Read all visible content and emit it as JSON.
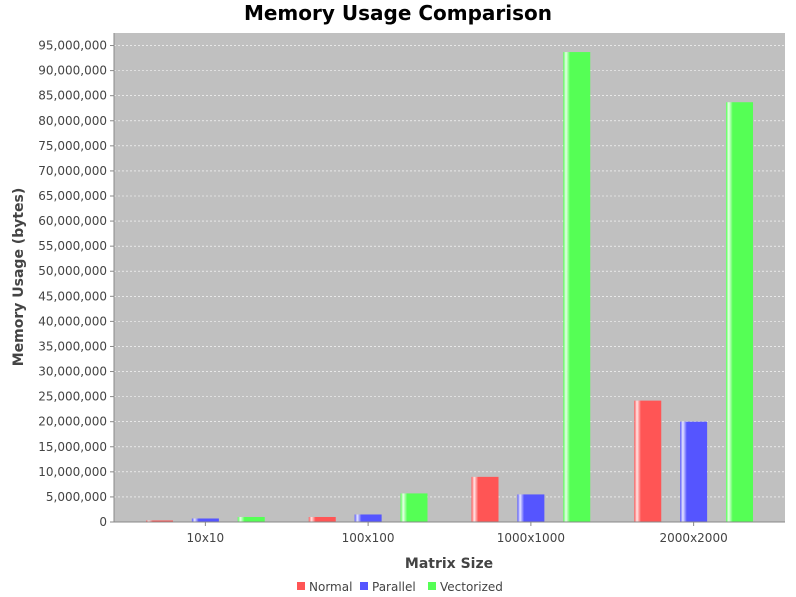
{
  "chart_data": {
    "type": "bar",
    "title": "Memory Usage Comparison",
    "xlabel": "Matrix Size",
    "ylabel": "Memory Usage (bytes)",
    "categories": [
      "10x10",
      "100x100",
      "1000x1000",
      "2000x2000"
    ],
    "series": [
      {
        "name": "Normal",
        "color": "#ff5555",
        "values": [
          300000,
          1000000,
          9000000,
          24200000
        ]
      },
      {
        "name": "Parallel",
        "color": "#5555ff",
        "values": [
          700000,
          1500000,
          5500000,
          20000000
        ]
      },
      {
        "name": "Vectorized",
        "color": "#55ff55",
        "values": [
          1000000,
          5700000,
          93700000,
          83700000
        ]
      }
    ],
    "ylim": [
      0,
      97500000
    ],
    "yticks": [
      0,
      5000000,
      10000000,
      15000000,
      20000000,
      25000000,
      30000000,
      35000000,
      40000000,
      45000000,
      50000000,
      55000000,
      60000000,
      65000000,
      70000000,
      75000000,
      80000000,
      85000000,
      90000000,
      95000000
    ],
    "ytick_labels": [
      "0",
      "5,000,000",
      "10,000,000",
      "15,000,000",
      "20,000,000",
      "25,000,000",
      "30,000,000",
      "35,000,000",
      "40,000,000",
      "45,000,000",
      "50,000,000",
      "55,000,000",
      "60,000,000",
      "65,000,000",
      "70,000,000",
      "75,000,000",
      "80,000,000",
      "85,000,000",
      "90,000,000",
      "95,000,000"
    ],
    "grid": true,
    "legend_position": "bottom-center",
    "plot_background": "#c0c0c0"
  }
}
